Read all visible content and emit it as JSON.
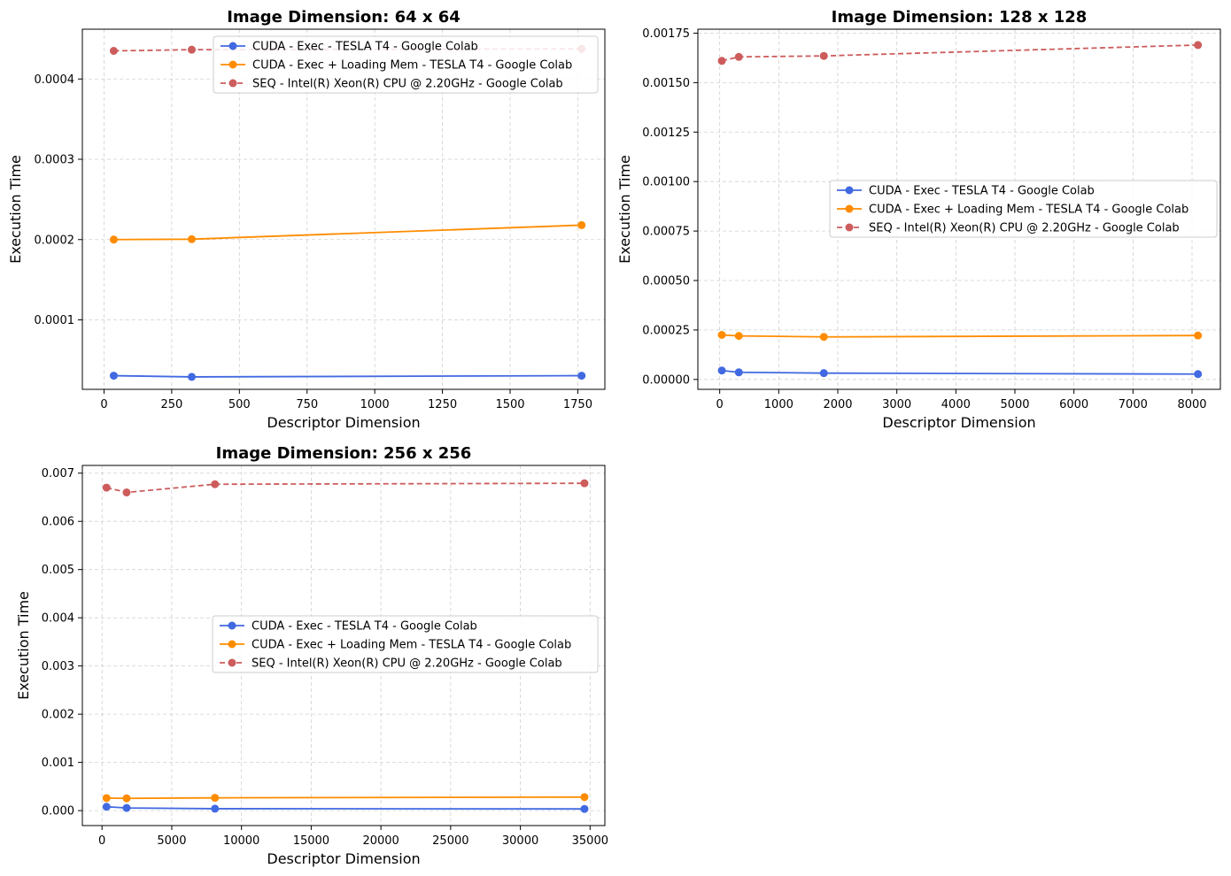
{
  "chart_data": [
    {
      "type": "line",
      "title": "Image Dimension: 64 x 64",
      "xlabel": "Descriptor Dimension",
      "ylabel": "Execution Time",
      "xlim": [
        -80,
        1850
      ],
      "ylim": [
        1.35e-05,
        0.000462
      ],
      "xticks": [
        0,
        250,
        500,
        750,
        1000,
        1250,
        1500,
        1750
      ],
      "xtick_labels": [
        "0",
        "250",
        "500",
        "750",
        "1000",
        "1250",
        "1500",
        "1750"
      ],
      "yticks": [
        0.0001,
        0.0002,
        0.0003,
        0.0004
      ],
      "ytick_labels": [
        "0.0001",
        "0.0002",
        "0.0003",
        "0.0004"
      ],
      "grid": true,
      "legend_position": "top-right",
      "series": [
        {
          "name": "CUDA - Exec - TESLA T4 - Google Colab",
          "color": "#4169e1",
          "dashed": false,
          "x": [
            36,
            324,
            1764
          ],
          "y": [
            3.05e-05,
            2.9e-05,
            3.05e-05
          ]
        },
        {
          "name": "CUDA - Exec + Loading Mem - TESLA T4 - Google Colab",
          "color": "#ff8c00",
          "dashed": false,
          "x": [
            36,
            324,
            1764
          ],
          "y": [
            0.0002,
            0.0002005,
            0.000218
          ]
        },
        {
          "name": "SEQ - Intel(R) Xeon(R) CPU @ 2.20GHz - Google Colab",
          "color": "#cd5c5c",
          "dashed": true,
          "x": [
            36,
            324,
            1764
          ],
          "y": [
            0.000435,
            0.0004365,
            0.0004375
          ]
        }
      ]
    },
    {
      "type": "line",
      "title": "Image Dimension: 128 x 128",
      "xlabel": "Descriptor Dimension",
      "ylabel": "Execution Time",
      "xlim": [
        -370,
        8480
      ],
      "ylim": [
        -5e-05,
        0.00177
      ],
      "xticks": [
        0,
        1000,
        2000,
        3000,
        4000,
        5000,
        6000,
        7000,
        8000
      ],
      "xtick_labels": [
        "0",
        "1000",
        "2000",
        "3000",
        "4000",
        "5000",
        "6000",
        "7000",
        "8000"
      ],
      "yticks": [
        0,
        0.00025,
        0.0005,
        0.00075,
        0.001,
        0.00125,
        0.0015,
        0.00175
      ],
      "ytick_labels": [
        "0.00000",
        "0.00025",
        "0.00050",
        "0.00075",
        "0.00100",
        "0.00125",
        "0.00150",
        "0.00175"
      ],
      "grid": true,
      "legend_position": "center-right",
      "series": [
        {
          "name": "CUDA - Exec - TESLA T4 - Google Colab",
          "color": "#4169e1",
          "dashed": false,
          "x": [
            36,
            324,
            1764,
            8100
          ],
          "y": [
            4.5e-05,
            3.6e-05,
            3.2e-05,
            2.7e-05
          ]
        },
        {
          "name": "CUDA - Exec + Loading Mem - TESLA T4 - Google Colab",
          "color": "#ff8c00",
          "dashed": false,
          "x": [
            36,
            324,
            1764,
            8100
          ],
          "y": [
            0.000225,
            0.00022,
            0.000215,
            0.000222
          ]
        },
        {
          "name": "SEQ - Intel(R) Xeon(R) CPU @ 2.20GHz - Google Colab",
          "color": "#cd5c5c",
          "dashed": true,
          "x": [
            36,
            324,
            1764,
            8100
          ],
          "y": [
            0.00161,
            0.00163,
            0.001635,
            0.00169
          ]
        }
      ]
    },
    {
      "type": "line",
      "title": "Image Dimension: 256 x 256",
      "xlabel": "Descriptor Dimension",
      "ylabel": "Execution Time",
      "xlim": [
        -1410,
        36060
      ],
      "ylim": [
        -0.00031,
        0.00716
      ],
      "xticks": [
        0,
        5000,
        10000,
        15000,
        20000,
        25000,
        30000,
        35000
      ],
      "xtick_labels": [
        "0",
        "5000",
        "10000",
        "15000",
        "20000",
        "25000",
        "30000",
        "35000"
      ],
      "yticks": [
        0,
        0.001,
        0.002,
        0.003,
        0.004,
        0.005,
        0.006,
        0.007
      ],
      "ytick_labels": [
        "0.000",
        "0.001",
        "0.002",
        "0.003",
        "0.004",
        "0.005",
        "0.006",
        "0.007"
      ],
      "grid": true,
      "legend_position": "center-right",
      "series": [
        {
          "name": "CUDA - Exec - TESLA T4 - Google Colab",
          "color": "#4169e1",
          "dashed": false,
          "x": [
            324,
            1764,
            8100,
            34596
          ],
          "y": [
            8e-05,
            5.5e-05,
            4e-05,
            3.5e-05
          ]
        },
        {
          "name": "CUDA - Exec + Loading Mem - TESLA T4 - Google Colab",
          "color": "#ff8c00",
          "dashed": false,
          "x": [
            324,
            1764,
            8100,
            34596
          ],
          "y": [
            0.00026,
            0.000255,
            0.000265,
            0.00028
          ]
        },
        {
          "name": "SEQ - Intel(R) Xeon(R) CPU @ 2.20GHz - Google Colab",
          "color": "#cd5c5c",
          "dashed": true,
          "x": [
            324,
            1764,
            8100,
            34596
          ],
          "y": [
            0.0067,
            0.0066,
            0.00677,
            0.00679
          ]
        }
      ]
    }
  ]
}
